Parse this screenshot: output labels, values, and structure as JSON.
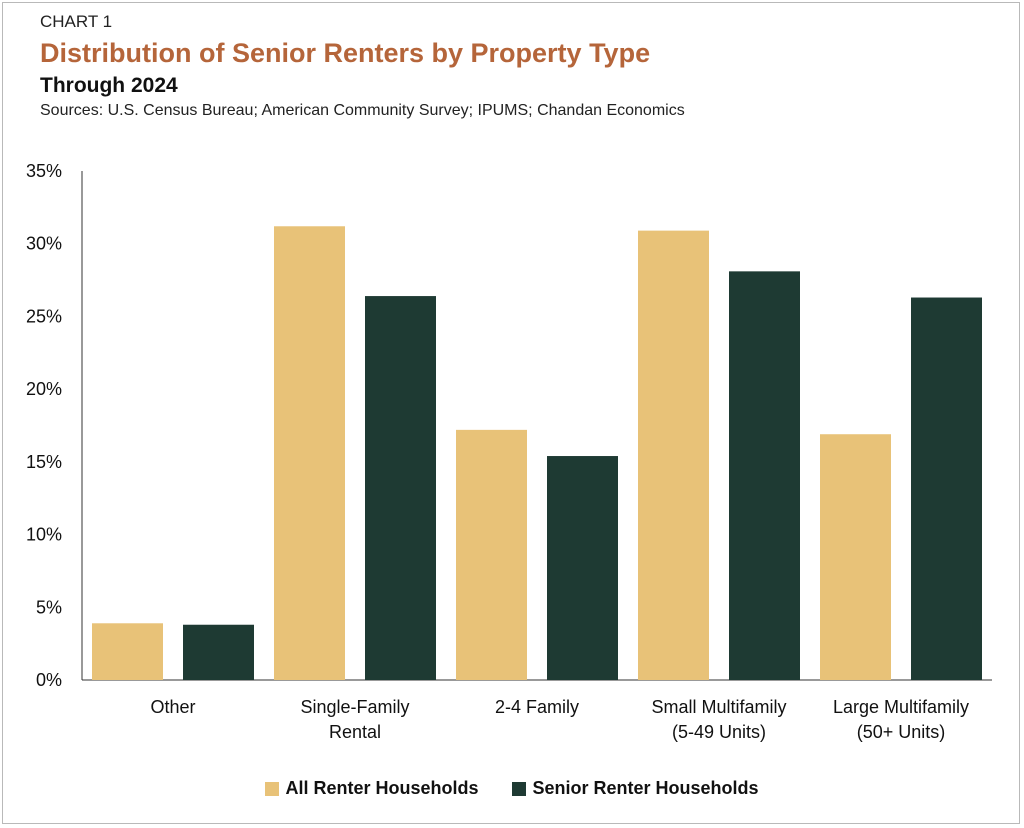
{
  "header": {
    "label": "CHART 1",
    "title": "Distribution of Senior Renters by Property Type",
    "subtitle": "Through 2024",
    "source": "Sources: U.S. Census Bureau; American Community Survey; IPUMS; Chandan Economics"
  },
  "colors": {
    "all": "#e8c278",
    "senior": "#1e3a33",
    "axis": "#333333"
  },
  "chart_data": {
    "type": "bar",
    "categories": [
      [
        "Other"
      ],
      [
        "Single-Family",
        "Rental"
      ],
      [
        "2-4 Family"
      ],
      [
        "Small Multifamily",
        "(5-49 Units)"
      ],
      [
        "Large Multifamily",
        "(50+ Units)"
      ]
    ],
    "series": [
      {
        "name": "All Renter Households",
        "values": [
          3.9,
          31.2,
          17.2,
          30.9,
          16.9
        ]
      },
      {
        "name": "Senior Renter Households",
        "values": [
          3.8,
          26.4,
          15.4,
          28.1,
          26.3
        ]
      }
    ],
    "ylim": [
      0,
      35
    ],
    "yticks": [
      0,
      5,
      10,
      15,
      20,
      25,
      30,
      35
    ],
    "ytick_suffix": "%",
    "grid": false,
    "legend": "bottom-center"
  },
  "legend": {
    "items": [
      {
        "label": "All Renter Households"
      },
      {
        "label": "Senior Renter Households"
      }
    ]
  }
}
